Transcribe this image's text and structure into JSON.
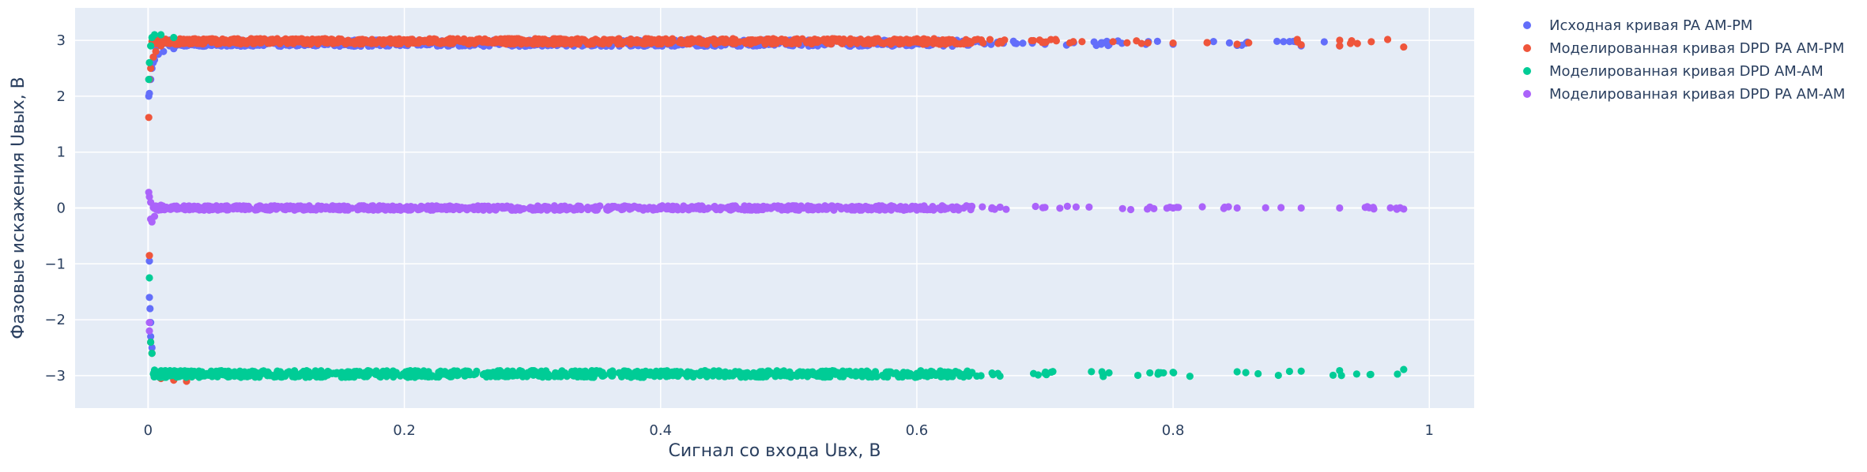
{
  "chart_data": {
    "type": "scatter",
    "title": "",
    "xlabel": "Сигнал со входа Uвх, В",
    "ylabel": "Фазовые искажения Uвых, В",
    "xlim": [
      -0.057,
      1.035
    ],
    "ylim": [
      -3.58,
      3.58
    ],
    "x_ticks": [
      0,
      0.2,
      0.4,
      0.6,
      0.8,
      1
    ],
    "x_tick_labels": [
      "0",
      "0.2",
      "0.4",
      "0.6",
      "0.8",
      "1"
    ],
    "y_ticks": [
      -3,
      -2,
      -1,
      0,
      1,
      2,
      3
    ],
    "y_tick_labels": [
      "−3",
      "−2",
      "−1",
      "0",
      "1",
      "2",
      "3"
    ],
    "grid": true,
    "legend_position": "top-right",
    "series": [
      {
        "name": "Исходная кривая PA AM-PM",
        "color": "#636efa",
        "points": [
          [
            0.0005,
            2.0
          ],
          [
            0.001,
            2.05
          ],
          [
            0.002,
            2.3
          ],
          [
            0.003,
            2.5
          ],
          [
            0.004,
            2.6
          ],
          [
            0.005,
            2.65
          ],
          [
            0.008,
            2.75
          ],
          [
            0.012,
            2.8
          ],
          [
            0.02,
            2.85
          ],
          [
            0.04,
            2.9
          ],
          [
            0.06,
            2.92
          ],
          [
            0.08,
            2.93
          ],
          [
            0.1,
            2.94
          ],
          [
            0.13,
            2.95
          ],
          [
            0.16,
            2.94
          ],
          [
            0.2,
            2.95
          ],
          [
            0.25,
            2.94
          ],
          [
            0.3,
            2.95
          ],
          [
            0.35,
            2.94
          ],
          [
            0.4,
            2.95
          ],
          [
            0.45,
            2.94
          ],
          [
            0.5,
            2.94
          ],
          [
            0.55,
            2.93
          ],
          [
            0.6,
            2.94
          ],
          [
            0.64,
            2.93
          ],
          [
            0.7,
            2.93
          ],
          [
            0.75,
            2.92
          ],
          [
            0.8,
            2.93
          ],
          [
            0.85,
            2.91
          ],
          [
            0.9,
            2.9
          ],
          [
            0.93,
            2.9
          ],
          [
            0.001,
            -0.95
          ],
          [
            0.001,
            -1.6
          ],
          [
            0.0015,
            -1.8
          ],
          [
            0.002,
            -2.05
          ],
          [
            0.002,
            -2.3
          ],
          [
            0.003,
            -2.5
          ]
        ],
        "band": {
          "x_start": 0.004,
          "x_dense_end": 0.64,
          "x_end": 0.93,
          "y": 2.95,
          "jitter": 0.055
        }
      },
      {
        "name": "Моделированная кривая DPD PA AM-PM",
        "color": "#ef553b",
        "points": [
          [
            0.0005,
            1.62
          ],
          [
            0.001,
            2.3
          ],
          [
            0.002,
            2.5
          ],
          [
            0.004,
            2.7
          ],
          [
            0.006,
            2.8
          ],
          [
            0.01,
            2.9
          ],
          [
            0.02,
            2.95
          ],
          [
            0.05,
            2.97
          ],
          [
            0.1,
            2.98
          ],
          [
            0.15,
            2.99
          ],
          [
            0.2,
            2.98
          ],
          [
            0.3,
            2.99
          ],
          [
            0.4,
            2.98
          ],
          [
            0.5,
            2.97
          ],
          [
            0.6,
            2.97
          ],
          [
            0.7,
            2.96
          ],
          [
            0.8,
            2.95
          ],
          [
            0.85,
            2.93
          ],
          [
            0.9,
            2.92
          ],
          [
            0.93,
            2.9
          ],
          [
            0.98,
            2.88
          ],
          [
            0.001,
            -0.85
          ],
          [
            0.002,
            -2.4
          ],
          [
            0.003,
            -2.6
          ],
          [
            0.01,
            -3.05
          ],
          [
            0.02,
            -3.08
          ],
          [
            0.03,
            -3.1
          ]
        ],
        "band": {
          "x_start": 0.003,
          "x_dense_end": 0.64,
          "x_end": 0.98,
          "y": 2.98,
          "jitter": 0.05
        }
      },
      {
        "name": "Моделированная кривая DPD AM-AM",
        "color": "#00cc96",
        "points": [
          [
            0.0005,
            2.3
          ],
          [
            0.001,
            2.6
          ],
          [
            0.002,
            2.9
          ],
          [
            0.003,
            3.05
          ],
          [
            0.005,
            3.1
          ],
          [
            0.01,
            3.1
          ],
          [
            0.02,
            3.05
          ],
          [
            0.001,
            -1.25
          ],
          [
            0.002,
            -2.4
          ],
          [
            0.003,
            -2.6
          ],
          [
            0.005,
            -2.9
          ],
          [
            0.01,
            -3.0
          ],
          [
            0.05,
            -2.98
          ],
          [
            0.1,
            -2.97
          ],
          [
            0.2,
            -2.97
          ],
          [
            0.3,
            -2.98
          ],
          [
            0.4,
            -2.97
          ],
          [
            0.5,
            -2.97
          ],
          [
            0.6,
            -2.96
          ],
          [
            0.7,
            -2.96
          ],
          [
            0.75,
            -2.95
          ],
          [
            0.8,
            -2.94
          ],
          [
            0.85,
            -2.93
          ],
          [
            0.9,
            -2.92
          ],
          [
            0.93,
            -2.91
          ],
          [
            0.98,
            -2.89
          ]
        ],
        "band": {
          "x_start": 0.004,
          "x_dense_end": 0.64,
          "x_end": 0.98,
          "y": -2.97,
          "jitter": 0.06
        }
      },
      {
        "name": "Моделированная кривая DPD PA AM-AM",
        "color": "#ab63fa",
        "points": [
          [
            0.0005,
            0.28
          ],
          [
            0.001,
            0.2
          ],
          [
            0.002,
            0.1
          ],
          [
            0.002,
            -0.2
          ],
          [
            0.003,
            -0.25
          ],
          [
            0.005,
            -0.15
          ],
          [
            0.01,
            0.05
          ],
          [
            0.05,
            0.02
          ],
          [
            0.1,
            0.01
          ],
          [
            0.2,
            0.0
          ],
          [
            0.3,
            0.0
          ],
          [
            0.4,
            0.0
          ],
          [
            0.5,
            0.0
          ],
          [
            0.6,
            0.0
          ],
          [
            0.7,
            0.01
          ],
          [
            0.8,
            0.0
          ],
          [
            0.85,
            0.0
          ],
          [
            0.9,
            0.0
          ],
          [
            0.93,
            0.0
          ],
          [
            0.95,
            0.01
          ],
          [
            0.98,
            -0.02
          ],
          [
            0.001,
            -2.05
          ],
          [
            0.001,
            -2.2
          ]
        ],
        "band": {
          "x_start": 0.004,
          "x_dense_end": 0.64,
          "x_end": 0.98,
          "y": 0.0,
          "jitter": 0.04
        }
      }
    ]
  }
}
